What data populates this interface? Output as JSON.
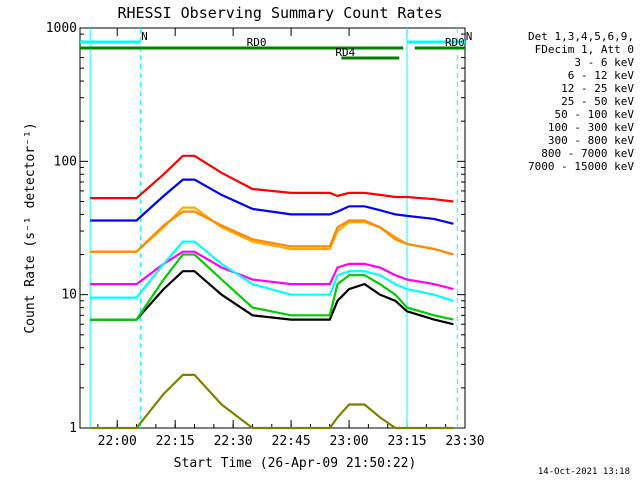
{
  "chart_data": {
    "type": "line",
    "title": "RHESSI Observing Summary Count Rates",
    "xlabel": "Start Time (26-Apr-09 21:50:22)",
    "ylabel": "Count Rate (s⁻¹ detector⁻¹)",
    "xlim": [
      "21:50:22",
      "23:30:00"
    ],
    "ylim": [
      1,
      1000
    ],
    "yscale": "log",
    "x_ticks": [
      "22:00",
      "22:15",
      "22:30",
      "22:45",
      "23:00",
      "23:15",
      "23:30"
    ],
    "y_ticks": [
      "1",
      "10",
      "100",
      "1000"
    ],
    "x_times": [
      "21:53",
      "22:05",
      "22:12",
      "22:17",
      "22:20",
      "22:27",
      "22:35",
      "22:45",
      "22:55",
      "22:57",
      "23:00",
      "23:04",
      "23:08",
      "23:12",
      "23:15",
      "23:22",
      "23:27"
    ],
    "legend_header": [
      "Det 1,3,4,5,6,9,",
      "FDecim 1, Att 0"
    ],
    "legend_position": "right",
    "series": [
      {
        "name": "3 - 6 keV",
        "color": "#000000",
        "values": [
          6.5,
          6.5,
          11,
          15,
          15,
          10,
          7,
          6.5,
          6.5,
          9,
          11,
          12,
          10,
          9,
          7.5,
          6.5,
          6
        ]
      },
      {
        "name": "6 - 12 keV",
        "color": "#ff00ff",
        "values": [
          12,
          12,
          17,
          21,
          21,
          16,
          13,
          12,
          12,
          16,
          17,
          17,
          16,
          14,
          13,
          12,
          11
        ]
      },
      {
        "name": "12 - 25 keV",
        "color": "#00cc00",
        "values": [
          6.5,
          6.5,
          13,
          20,
          20,
          13,
          8,
          7,
          7,
          12,
          14,
          14,
          12,
          10,
          8,
          7,
          6.5
        ]
      },
      {
        "name": "25 - 50 keV",
        "color": "#00ffff",
        "values": [
          9.5,
          9.5,
          17,
          25,
          25,
          17,
          12,
          10,
          10,
          14,
          15,
          15,
          14,
          12,
          11,
          10,
          9
        ]
      },
      {
        "name": "50 - 100 keV",
        "color": "#ffaa00",
        "values": [
          21,
          21,
          32,
          45,
          45,
          32,
          25,
          22,
          22,
          30,
          35,
          35,
          32,
          27,
          24,
          22,
          20
        ]
      },
      {
        "name": "100 - 300 keV",
        "color": "#ff0000",
        "values": [
          53,
          53,
          80,
          110,
          110,
          82,
          62,
          58,
          58,
          55,
          58,
          58,
          56,
          54,
          54,
          52,
          50
        ]
      },
      {
        "name": "300 - 800 keV",
        "color": "#0000ff",
        "values": [
          36,
          36,
          55,
          73,
          73,
          56,
          44,
          40,
          40,
          42,
          46,
          46,
          43,
          40,
          39,
          37,
          34
        ]
      },
      {
        "name": "800 - 7000 keV",
        "color": "#ff8800",
        "values": [
          21,
          21,
          33,
          42,
          42,
          33,
          26,
          23,
          23,
          32,
          36,
          36,
          32,
          26,
          24,
          22,
          20
        ]
      },
      {
        "name": "7000 - 15000 keV",
        "color": "#808000",
        "values": [
          1,
          1,
          1.8,
          2.5,
          2.5,
          1.5,
          1,
          1,
          1,
          1.2,
          1.5,
          1.5,
          1.2,
          1,
          1,
          1,
          1
        ]
      }
    ],
    "flag_bars": [
      {
        "label": "N",
        "color": "#00ffff",
        "start": "21:50:22",
        "end": "22:06",
        "row": 1
      },
      {
        "label": "N",
        "color": "#00ffff",
        "start": "23:15",
        "end": "23:30",
        "row": 1
      },
      {
        "label": "RD0",
        "color": "#008000",
        "start": "21:50:22",
        "end": "23:14",
        "row": 2
      },
      {
        "label": "RD0",
        "color": "#008000",
        "start": "23:17",
        "end": "23:30",
        "row": 2
      },
      {
        "label": "RD4",
        "color": "#008000",
        "start": "22:58",
        "end": "23:13",
        "row": 3
      }
    ],
    "vertical_markers": [
      {
        "time": "21:53",
        "style": "solid",
        "color": "#00ffff"
      },
      {
        "time": "22:06",
        "style": "dashed",
        "color": "#00ffff"
      },
      {
        "time": "23:15",
        "style": "solid",
        "color": "#00ffff"
      },
      {
        "time": "23:28",
        "style": "dashed",
        "color": "#00ffff"
      }
    ],
    "timestamp": "14-Oct-2021 13:18"
  }
}
